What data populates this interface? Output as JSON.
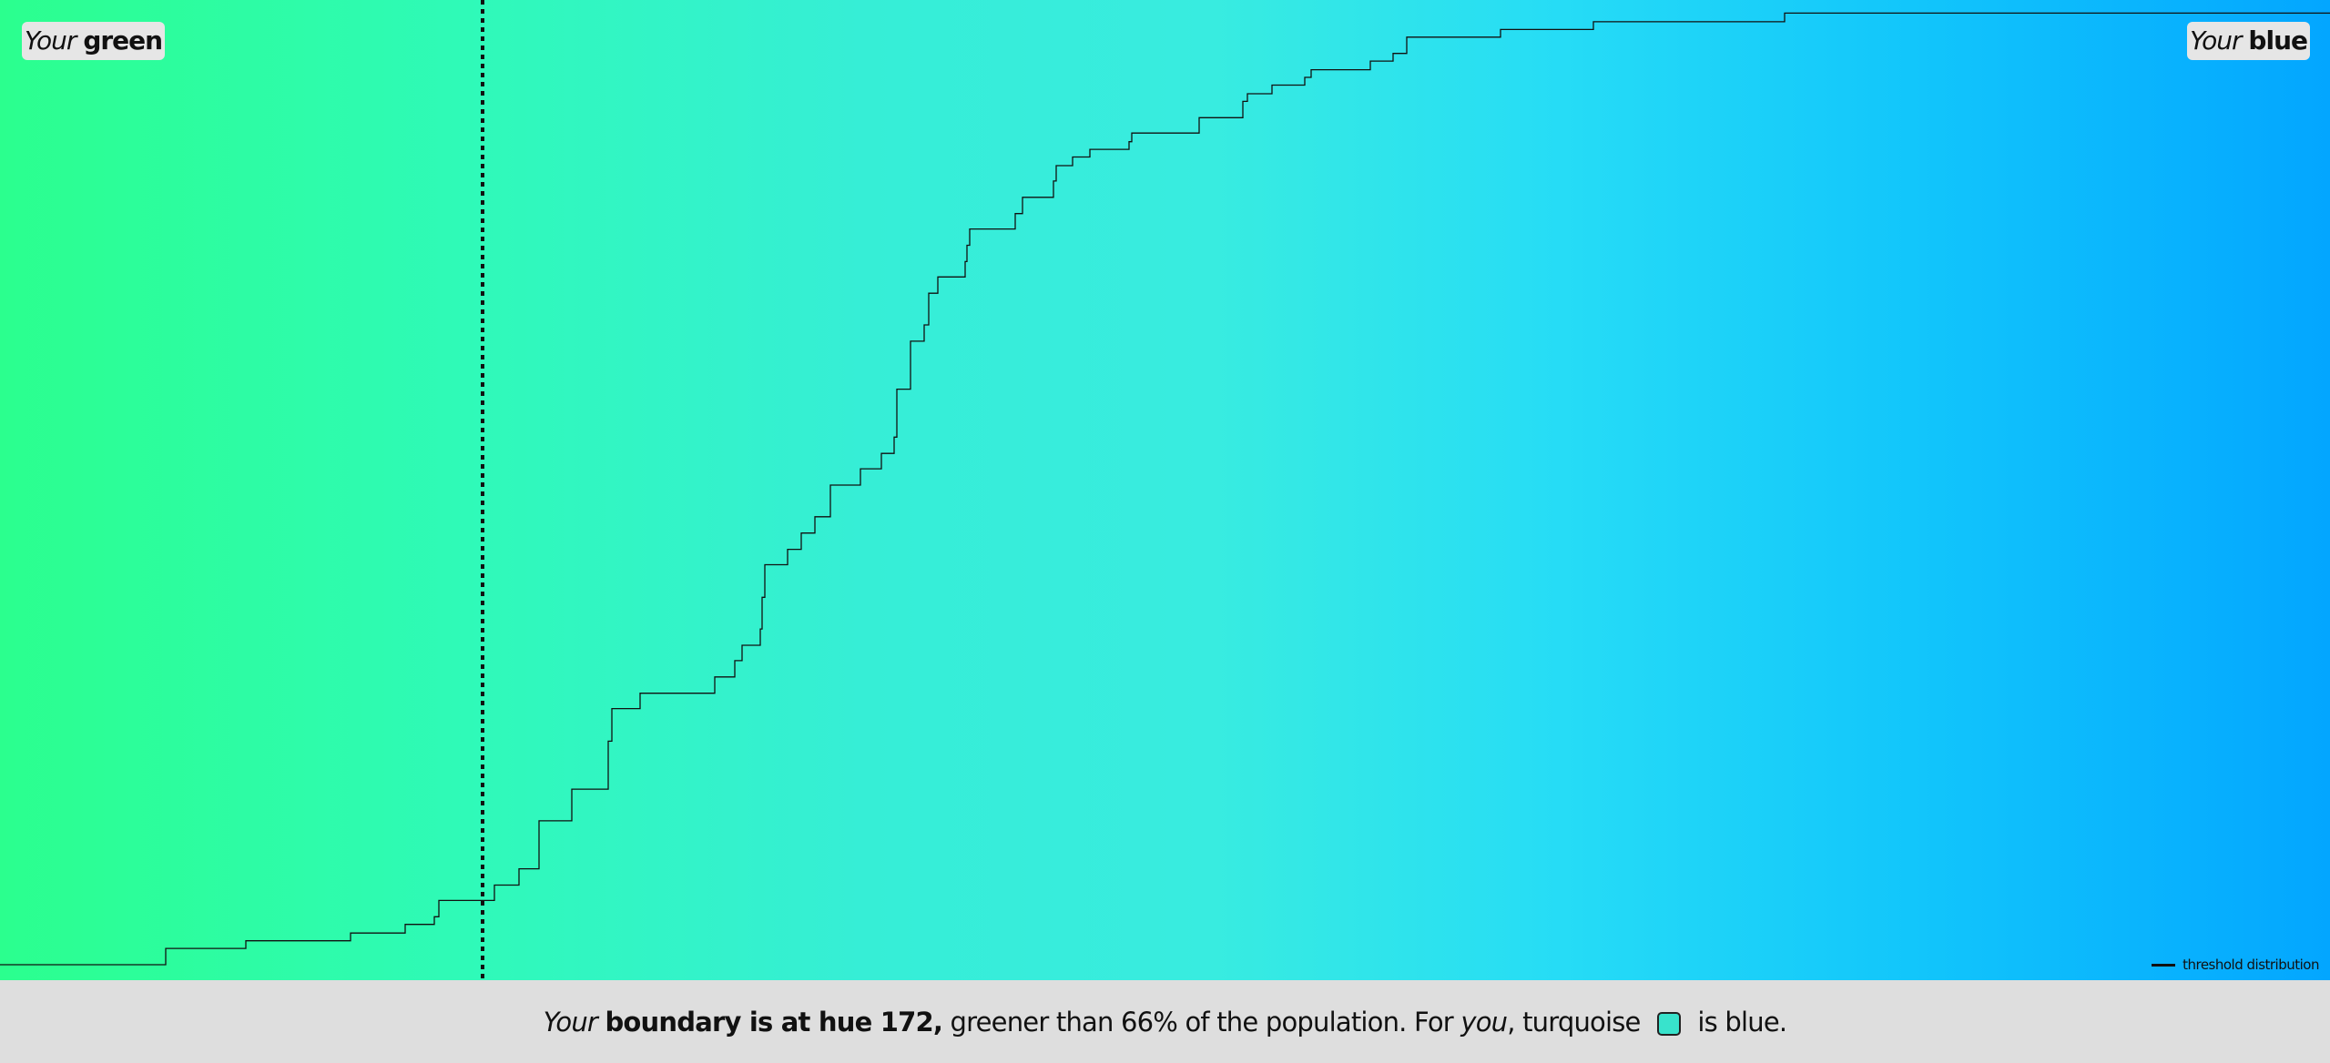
{
  "labels": {
    "left_your": "Your",
    "left_word": "green",
    "right_your": "Your",
    "right_word": "blue"
  },
  "legend": {
    "label": "threshold distribution"
  },
  "footer": {
    "your": "Your",
    "boundary": "boundary is at hue 172,",
    "greener": "greener than 66% of the population. For",
    "you": "you",
    "turquoise": ", turquoise",
    "is_blue": "is blue."
  },
  "colors": {
    "swatch": "#38e3cc",
    "curve": "#111111",
    "boundary_line": "#111111"
  },
  "chart_data": {
    "type": "line",
    "series": [
      {
        "name": "threshold distribution",
        "x": [
          0,
          1,
          2,
          3,
          4,
          5,
          6,
          7,
          8,
          9,
          10,
          11,
          12,
          13,
          14,
          15,
          16,
          17,
          18,
          19,
          20,
          21,
          22,
          23,
          24,
          25,
          26,
          27,
          28,
          29,
          30,
          31,
          32,
          33,
          34,
          35,
          36,
          37,
          38,
          39,
          40,
          41,
          42,
          43,
          44,
          45,
          46,
          47,
          48,
          49,
          50,
          51,
          52,
          53,
          54,
          55,
          56,
          57,
          58,
          59,
          60,
          61,
          62,
          63,
          64,
          65,
          66,
          67,
          68,
          69,
          70,
          71,
          72,
          73,
          74,
          75,
          76,
          77,
          78,
          79,
          80,
          81,
          82,
          83,
          84,
          85,
          86,
          87,
          88,
          89,
          90
        ],
        "y": [
          0.0,
          0.0,
          0.0,
          0.0,
          0.0,
          0.0,
          0.0,
          0.0,
          0.0,
          0.0,
          0.0,
          0.0,
          0.0,
          0.0,
          0.0,
          0.0,
          0.0,
          0.0,
          0.0,
          0.0,
          0.0,
          0.0,
          0.0,
          0.0,
          0.0,
          0.0,
          0.0,
          0.0,
          0.0,
          0.0,
          0.0,
          0.0,
          0.0,
          0.0,
          0.0,
          0.0,
          0.0,
          0.0,
          0.0,
          0.0,
          0.0,
          0.0,
          0.0,
          0.0,
          0.0,
          0.0,
          0.0,
          0.0,
          0.0,
          0.0,
          0.0,
          0.0,
          0.0,
          0.0,
          0.0,
          0.0,
          0.0,
          0.0,
          0.0,
          0.0,
          0.0,
          0.0,
          0.0,
          0.0,
          0.0,
          0.0,
          0.0,
          0.0,
          0.0,
          0.0,
          0.0,
          0.0,
          0.0,
          0.0,
          0.0,
          0.0,
          0.0,
          0.0,
          0.0,
          0.0,
          0.0,
          0.0,
          0.0,
          0.0,
          0.0,
          0.0,
          0.0,
          0.0,
          0.0,
          0.0,
          0.0
        ]
      }
    ],
    "steps": [
      [
        0,
        0.0
      ],
      [
        182,
        0.0
      ],
      [
        182,
        0.017
      ],
      [
        270,
        0.017
      ],
      [
        270,
        0.025
      ],
      [
        385,
        0.025
      ],
      [
        385,
        0.033
      ],
      [
        445,
        0.033
      ],
      [
        445,
        0.042
      ],
      [
        477,
        0.042
      ],
      [
        477,
        0.05
      ],
      [
        482,
        0.05
      ],
      [
        482,
        0.067
      ],
      [
        543,
        0.067
      ],
      [
        543,
        0.083
      ],
      [
        570,
        0.083
      ],
      [
        570,
        0.1
      ],
      [
        592,
        0.1
      ],
      [
        592,
        0.15
      ],
      [
        628,
        0.15
      ],
      [
        628,
        0.183
      ],
      [
        668,
        0.183
      ],
      [
        668,
        0.233
      ],
      [
        672,
        0.233
      ],
      [
        672,
        0.267
      ],
      [
        703,
        0.267
      ],
      [
        703,
        0.283
      ],
      [
        785,
        0.283
      ],
      [
        785,
        0.3
      ],
      [
        807,
        0.3
      ],
      [
        807,
        0.317
      ],
      [
        815,
        0.317
      ],
      [
        815,
        0.333
      ],
      [
        835,
        0.333
      ],
      [
        835,
        0.35
      ],
      [
        837,
        0.35
      ],
      [
        837,
        0.383
      ],
      [
        840,
        0.383
      ],
      [
        840,
        0.417
      ],
      [
        865,
        0.417
      ],
      [
        865,
        0.433
      ],
      [
        880,
        0.433
      ],
      [
        880,
        0.45
      ],
      [
        895,
        0.45
      ],
      [
        895,
        0.467
      ],
      [
        912,
        0.467
      ],
      [
        912,
        0.5
      ],
      [
        945,
        0.5
      ],
      [
        945,
        0.517
      ],
      [
        968,
        0.517
      ],
      [
        968,
        0.533
      ],
      [
        982,
        0.533
      ],
      [
        982,
        0.55
      ],
      [
        985,
        0.55
      ],
      [
        985,
        0.6
      ],
      [
        1000,
        0.6
      ],
      [
        1000,
        0.65
      ],
      [
        1015,
        0.65
      ],
      [
        1015,
        0.667
      ],
      [
        1020,
        0.667
      ],
      [
        1020,
        0.7
      ],
      [
        1030,
        0.7
      ],
      [
        1030,
        0.717
      ],
      [
        1060,
        0.717
      ],
      [
        1060,
        0.733
      ],
      [
        1062,
        0.733
      ],
      [
        1062,
        0.75
      ],
      [
        1065,
        0.75
      ],
      [
        1065,
        0.767
      ],
      [
        1115,
        0.767
      ],
      [
        1115,
        0.783
      ],
      [
        1123,
        0.783
      ],
      [
        1123,
        0.8
      ],
      [
        1157,
        0.8
      ],
      [
        1157,
        0.817
      ],
      [
        1160,
        0.817
      ],
      [
        1160,
        0.833
      ],
      [
        1178,
        0.833
      ],
      [
        1178,
        0.842
      ],
      [
        1197,
        0.842
      ],
      [
        1197,
        0.85
      ],
      [
        1240,
        0.85
      ],
      [
        1240,
        0.858
      ],
      [
        1243,
        0.858
      ],
      [
        1243,
        0.867
      ],
      [
        1317,
        0.867
      ],
      [
        1317,
        0.883
      ],
      [
        1365,
        0.883
      ],
      [
        1365,
        0.9
      ],
      [
        1370,
        0.9
      ],
      [
        1370,
        0.908
      ],
      [
        1397,
        0.908
      ],
      [
        1397,
        0.917
      ],
      [
        1433,
        0.917
      ],
      [
        1433,
        0.925
      ],
      [
        1440,
        0.925
      ],
      [
        1440,
        0.933
      ],
      [
        1505,
        0.933
      ],
      [
        1505,
        0.942
      ],
      [
        1530,
        0.942
      ],
      [
        1530,
        0.95
      ],
      [
        1545,
        0.95
      ],
      [
        1545,
        0.967
      ],
      [
        1648,
        0.967
      ],
      [
        1648,
        0.975
      ],
      [
        1750,
        0.975
      ],
      [
        1750,
        0.983
      ],
      [
        1960,
        0.983
      ],
      [
        1960,
        0.992
      ],
      [
        2559,
        0.992
      ]
    ],
    "boundary_x_frac": 0.2072,
    "ylim": [
      0,
      1
    ]
  }
}
